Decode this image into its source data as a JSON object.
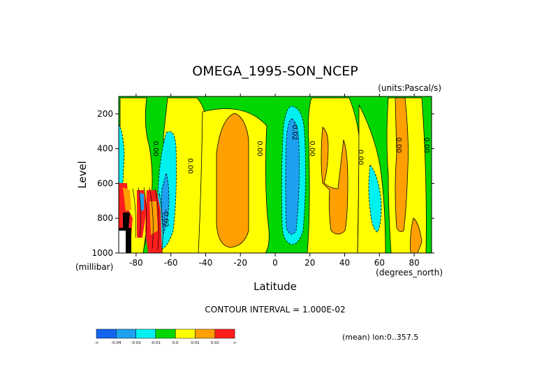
{
  "chart_data": {
    "type": "contour",
    "title": "OMEGA_1995-SON_NCEP",
    "units_label": "(units:Pascal/s)",
    "xlabel": "Latitude",
    "ylabel": "Level",
    "x_units_label": "(degrees_north)",
    "y_units_label": "(millibar)",
    "xlim": [
      -90,
      90
    ],
    "ylim": [
      1000,
      100
    ],
    "y_axis_inverted": true,
    "x_ticks": [
      -80,
      -60,
      -40,
      -20,
      0,
      20,
      40,
      60,
      80
    ],
    "x_tick_labels": [
      "-80",
      "-60",
      "-40",
      "-20",
      "0",
      "20",
      "40",
      "60",
      "80"
    ],
    "y_ticks": [
      200,
      400,
      600,
      800,
      1000
    ],
    "y_tick_labels": [
      "200",
      "400",
      "600",
      "800",
      "1000"
    ],
    "contour_interval_text": "CONTOUR INTERVAL = 1.000E-02",
    "mean_text": "(mean) lon:0..357.5",
    "contour_labels": [
      {
        "text": "0.00",
        "lat": -70,
        "level": 400
      },
      {
        "text": "0.00",
        "lat": -50,
        "level": 500
      },
      {
        "text": "0.00",
        "lat": -10,
        "level": 400
      },
      {
        "text": "-0.02",
        "lat": 10,
        "level": 300
      },
      {
        "text": "0.00",
        "lat": 20,
        "level": 400
      },
      {
        "text": "0.00",
        "lat": 48,
        "level": 450
      },
      {
        "text": "0.00",
        "lat": 70,
        "level": 380
      },
      {
        "text": "0.00",
        "lat": 86,
        "level": 380
      },
      {
        "text": "-0.02",
        "lat": -64,
        "level": 800
      }
    ],
    "colorbar": {
      "colors": [
        "#1464f0",
        "#1ea0f0",
        "#00f0f0",
        "#00d700",
        "#ffff00",
        "#ffa000",
        "#ff1e1e"
      ],
      "labels": [
        "-∞",
        "-0.04",
        "-0.02",
        "-0.01",
        "0.0",
        "0.01",
        "0.02",
        "∞"
      ]
    },
    "regions": [
      {
        "name": "sh-pole-cells",
        "value_class": "positive",
        "lat_range": [
          -90,
          -72
        ],
        "level_range": [
          600,
          1000
        ]
      },
      {
        "name": "sh-descent",
        "value_class": "negative",
        "lat_range": [
          -72,
          -56
        ],
        "level_range": [
          200,
          1000
        ]
      },
      {
        "name": "subtropical-descent-sh",
        "value_class": "positive",
        "lat_range": [
          -42,
          -12
        ],
        "level_range": [
          150,
          1000
        ]
      },
      {
        "name": "itcz-ascent",
        "value_class": "negative",
        "lat_range": [
          2,
          18
        ],
        "level_range": [
          100,
          1000
        ]
      },
      {
        "name": "subtropical-descent-nh",
        "value_class": "positive",
        "lat_range": [
          22,
          48
        ],
        "level_range": [
          200,
          900
        ]
      },
      {
        "name": "nh-midlat-ascent",
        "value_class": "negative",
        "lat_range": [
          50,
          62
        ],
        "level_range": [
          500,
          850
        ]
      },
      {
        "name": "nh-polar-descent",
        "value_class": "positive",
        "lat_range": [
          62,
          90
        ],
        "level_range": [
          100,
          1000
        ]
      }
    ]
  }
}
